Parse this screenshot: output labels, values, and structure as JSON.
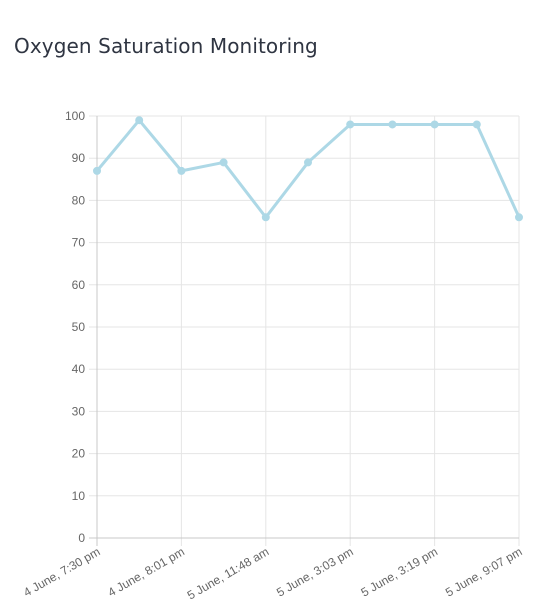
{
  "page": {
    "title": "Oxygen Saturation Monitoring"
  },
  "chart_data": {
    "type": "line",
    "title": "",
    "xlabel": "",
    "ylabel": "",
    "ylim": [
      0,
      100
    ],
    "y_ticks": [
      0,
      10,
      20,
      30,
      40,
      50,
      60,
      70,
      80,
      90,
      100
    ],
    "x_tick_labels": [
      "4 June, 7:30 pm",
      "4 June, 8:01 pm",
      "5 June, 11:48 am",
      "5 June, 3:03 pm",
      "5 June, 3:19 pm",
      "5 June, 9:07 pm"
    ],
    "grid": true,
    "legend": "none",
    "line_color": "#add8e6",
    "series": [
      {
        "values": [
          87,
          99,
          87,
          89,
          76,
          89,
          98,
          98,
          98,
          98,
          76
        ]
      }
    ]
  }
}
